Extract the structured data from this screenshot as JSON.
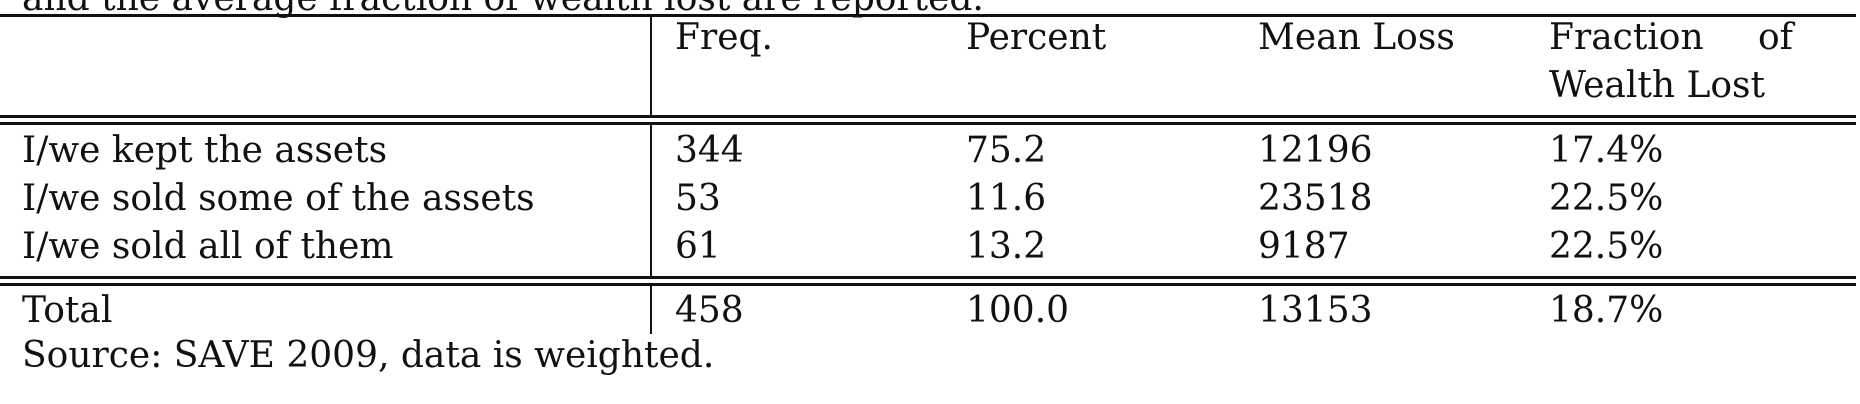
{
  "caption_fragment": "and the average fraction of wealth lost are reported.",
  "table": {
    "headers": [
      "",
      "Freq.",
      "Percent",
      "Mean Loss",
      "Fraction of Wealth Lost"
    ],
    "header_fraction_line1": "Fraction",
    "header_fraction_of": "of",
    "header_fraction_line2": "Wealth Lost",
    "rows": [
      {
        "label": "I/we kept the assets",
        "freq": "344",
        "percent": "75.2",
        "mean_loss": "12196",
        "fraction": "17.4%"
      },
      {
        "label": "I/we sold some of the assets",
        "freq": "53",
        "percent": "11.6",
        "mean_loss": "23518",
        "fraction": "22.5%"
      },
      {
        "label": "I/we sold all of them",
        "freq": "61",
        "percent": "13.2",
        "mean_loss": "9187",
        "fraction": "22.5%"
      }
    ],
    "total": {
      "label": "Total",
      "freq": "458",
      "percent": "100.0",
      "mean_loss": "13153",
      "fraction": "18.7%"
    }
  },
  "source_note": "Source: SAVE 2009, data is weighted."
}
